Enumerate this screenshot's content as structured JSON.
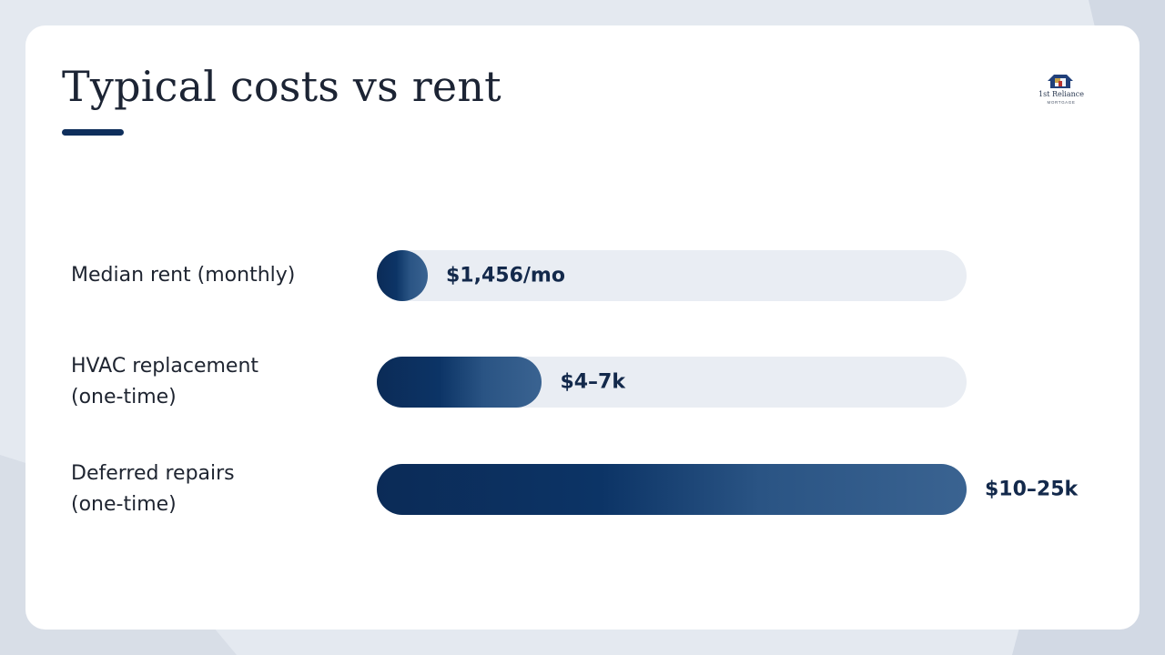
{
  "slide": {
    "title": "Typical costs vs rent"
  },
  "logo": {
    "name": "1st Reliance",
    "tagline": "MORTGAGE"
  },
  "colors": {
    "accent": "#0f2f5c",
    "bar_start": "#0b2b57",
    "bar_end": "#3a6391",
    "track": "#e9edf3"
  },
  "chart_data": {
    "type": "bar",
    "orientation": "horizontal",
    "categories": [
      "Median rent (monthly)",
      "HVAC replacement (one-time)",
      "Deferred repairs (one-time)"
    ],
    "category_lines": [
      [
        "Median rent (monthly)"
      ],
      [
        "HVAC replacement",
        "(one-time)"
      ],
      [
        "Deferred repairs",
        "(one-time)"
      ]
    ],
    "values": [
      1456,
      7000,
      25000
    ],
    "value_labels": [
      "$1,456/mo",
      "$4–7k",
      "$10–25k"
    ],
    "xlim": [
      0,
      25000
    ],
    "grid": false,
    "legend": "none"
  }
}
